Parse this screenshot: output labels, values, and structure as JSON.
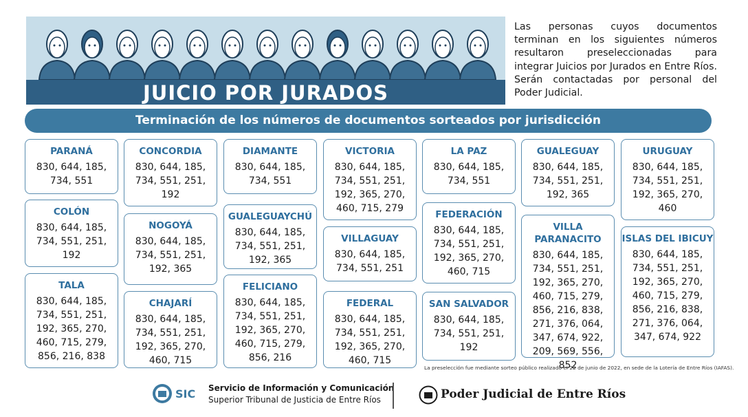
{
  "banner": {
    "title": "JUICIO POR JURADOS"
  },
  "intro": {
    "text": "Las personas cuyos documentos terminan en los siguientes números resultaron preseleccionadas para integrar Juicios por Jurados en Entre Ríos. Serán contactadas por personal del Poder Judicial."
  },
  "subtitle": "Terminación de los números de documentos sorteados por jurisdicción",
  "jurisdictions": [
    {
      "name": "PARANÁ",
      "nums": [
        "830, 644, 185,",
        "734, 551"
      ]
    },
    {
      "name": "COLÓN",
      "nums": [
        "830, 644, 185,",
        "734, 551, 251,",
        "192"
      ]
    },
    {
      "name": "TALA",
      "nums": [
        "830, 644, 185,",
        "734, 551, 251,",
        "192, 365, 270,",
        "460, 715, 279,",
        "856, 216, 838"
      ]
    },
    {
      "name": "CONCORDIA",
      "nums": [
        "830, 644, 185,",
        "734, 551, 251,",
        "192"
      ]
    },
    {
      "name": "NOGOYÁ",
      "nums": [
        "830, 644, 185,",
        "734, 551, 251,",
        "192, 365"
      ]
    },
    {
      "name": "CHAJARÍ",
      "nums": [
        "830, 644, 185,",
        "734, 551, 251,",
        "192, 365, 270,",
        "460, 715"
      ]
    },
    {
      "name": "DIAMANTE",
      "nums": [
        "830, 644, 185,",
        "734, 551"
      ]
    },
    {
      "name": "GUALEGUAYCHÚ",
      "nums": [
        "830, 644, 185,",
        "734, 551, 251,",
        "192, 365"
      ]
    },
    {
      "name": "FELICIANO",
      "nums": [
        "830, 644, 185,",
        "734, 551, 251,",
        "192, 365, 270,",
        "460, 715, 279,",
        "856, 216"
      ]
    },
    {
      "name": "VICTORIA",
      "nums": [
        "830, 644, 185,",
        "734, 551, 251,",
        "192, 365, 270,",
        "460, 715, 279"
      ]
    },
    {
      "name": "VILLAGUAY",
      "nums": [
        "830, 644, 185,",
        "734, 551, 251"
      ]
    },
    {
      "name": "FEDERAL",
      "nums": [
        "830, 644, 185,",
        "734, 551, 251,",
        "192, 365, 270,",
        "460, 715"
      ]
    },
    {
      "name": "LA PAZ",
      "nums": [
        "830, 644, 185,",
        "734, 551"
      ]
    },
    {
      "name": "FEDERACIÓN",
      "nums": [
        "830, 644, 185,",
        "734, 551, 251,",
        "192, 365, 270,",
        "460, 715"
      ]
    },
    {
      "name": "SAN SALVADOR",
      "nums": [
        "830, 644, 185,",
        "734, 551, 251,",
        "192"
      ]
    },
    {
      "name": "GUALEGUAY",
      "nums": [
        "830, 644, 185,",
        "734, 551, 251,",
        "192, 365"
      ]
    },
    {
      "name": "VILLA PARANACITO",
      "nums": [
        "830, 644, 185,",
        "734, 551, 251,",
        "192, 365, 270,",
        "460, 715, 279,",
        "856, 216, 838,",
        "271, 376, 064,",
        "347, 674, 922,",
        "209, 569, 556,",
        "852"
      ]
    },
    {
      "name": "URUGUAY",
      "nums": [
        "830, 644, 185,",
        "734, 551, 251,",
        "192, 365, 270,",
        "460"
      ]
    },
    {
      "name": "ISLAS DEL IBICUY",
      "nums": [
        "830, 644, 185,",
        "734, 551, 251,",
        "192, 365, 270,",
        "460, 715, 279,",
        "856, 216,  838,",
        "271, 376, 064,",
        "347, 674, 922"
      ]
    }
  ],
  "footnote": "La preselección fue mediante sorteo público realizado el 22 de junio de 2022, en sede de la Lotería de Entre Ríos (IAFAS).",
  "footer": {
    "sic": "SIC",
    "org_line1": "Servicio de Información y Comunicación",
    "org_line2": "Superior Tribunal de Justicia de Entre Ríos",
    "poder_judicial": "Poder Judicial de Entre Ríos"
  },
  "colors": {
    "accent": "#3d7aa1",
    "dark_accent": "#2f5f84",
    "banner_bg": "#c7dde9"
  }
}
